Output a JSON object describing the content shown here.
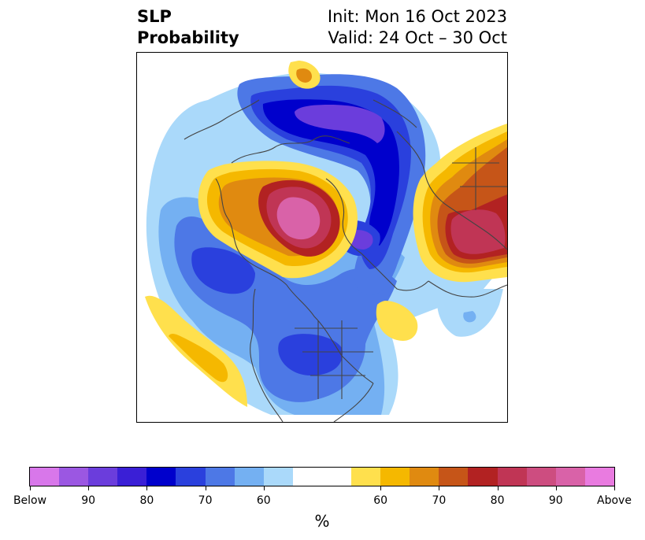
{
  "title": {
    "left_line1": "SLP",
    "left_line2": "Probability",
    "right_line1": "Init: Mon 16 Oct 2023",
    "right_line2": "Valid: 24 Oct – 30 Oct"
  },
  "colorbar": {
    "colors": [
      "#d877ea",
      "#9b57e2",
      "#6b3ddc",
      "#3a1fd6",
      "#0000cc",
      "#2a40dd",
      "#4d78e6",
      "#74b0f2",
      "#aad9fa",
      "#ffffff",
      "#ffffff",
      "#ffe04d",
      "#f5b800",
      "#e08a10",
      "#c65518",
      "#b22222",
      "#c03555",
      "#cd4d80",
      "#d962a8",
      "#e97be0"
    ],
    "labels": [
      "Below",
      "90",
      "80",
      "70",
      "60",
      "60",
      "70",
      "80",
      "90",
      "Above"
    ],
    "unit": "%"
  },
  "map_colors": {
    "coast": "#444444",
    "blue_light": "#aad9fa",
    "blue_mid": "#74b0f2",
    "blue_deep": "#4d78e6",
    "blue_strong": "#2a40dd",
    "blue_core": "#0000cc",
    "purple": "#6b3ddc",
    "yellow": "#ffe04d",
    "orange_light": "#f5b800",
    "orange": "#e08a10",
    "red_orange": "#c65518",
    "red": "#b22222",
    "crimson": "#c03555",
    "pink": "#d962a8"
  }
}
